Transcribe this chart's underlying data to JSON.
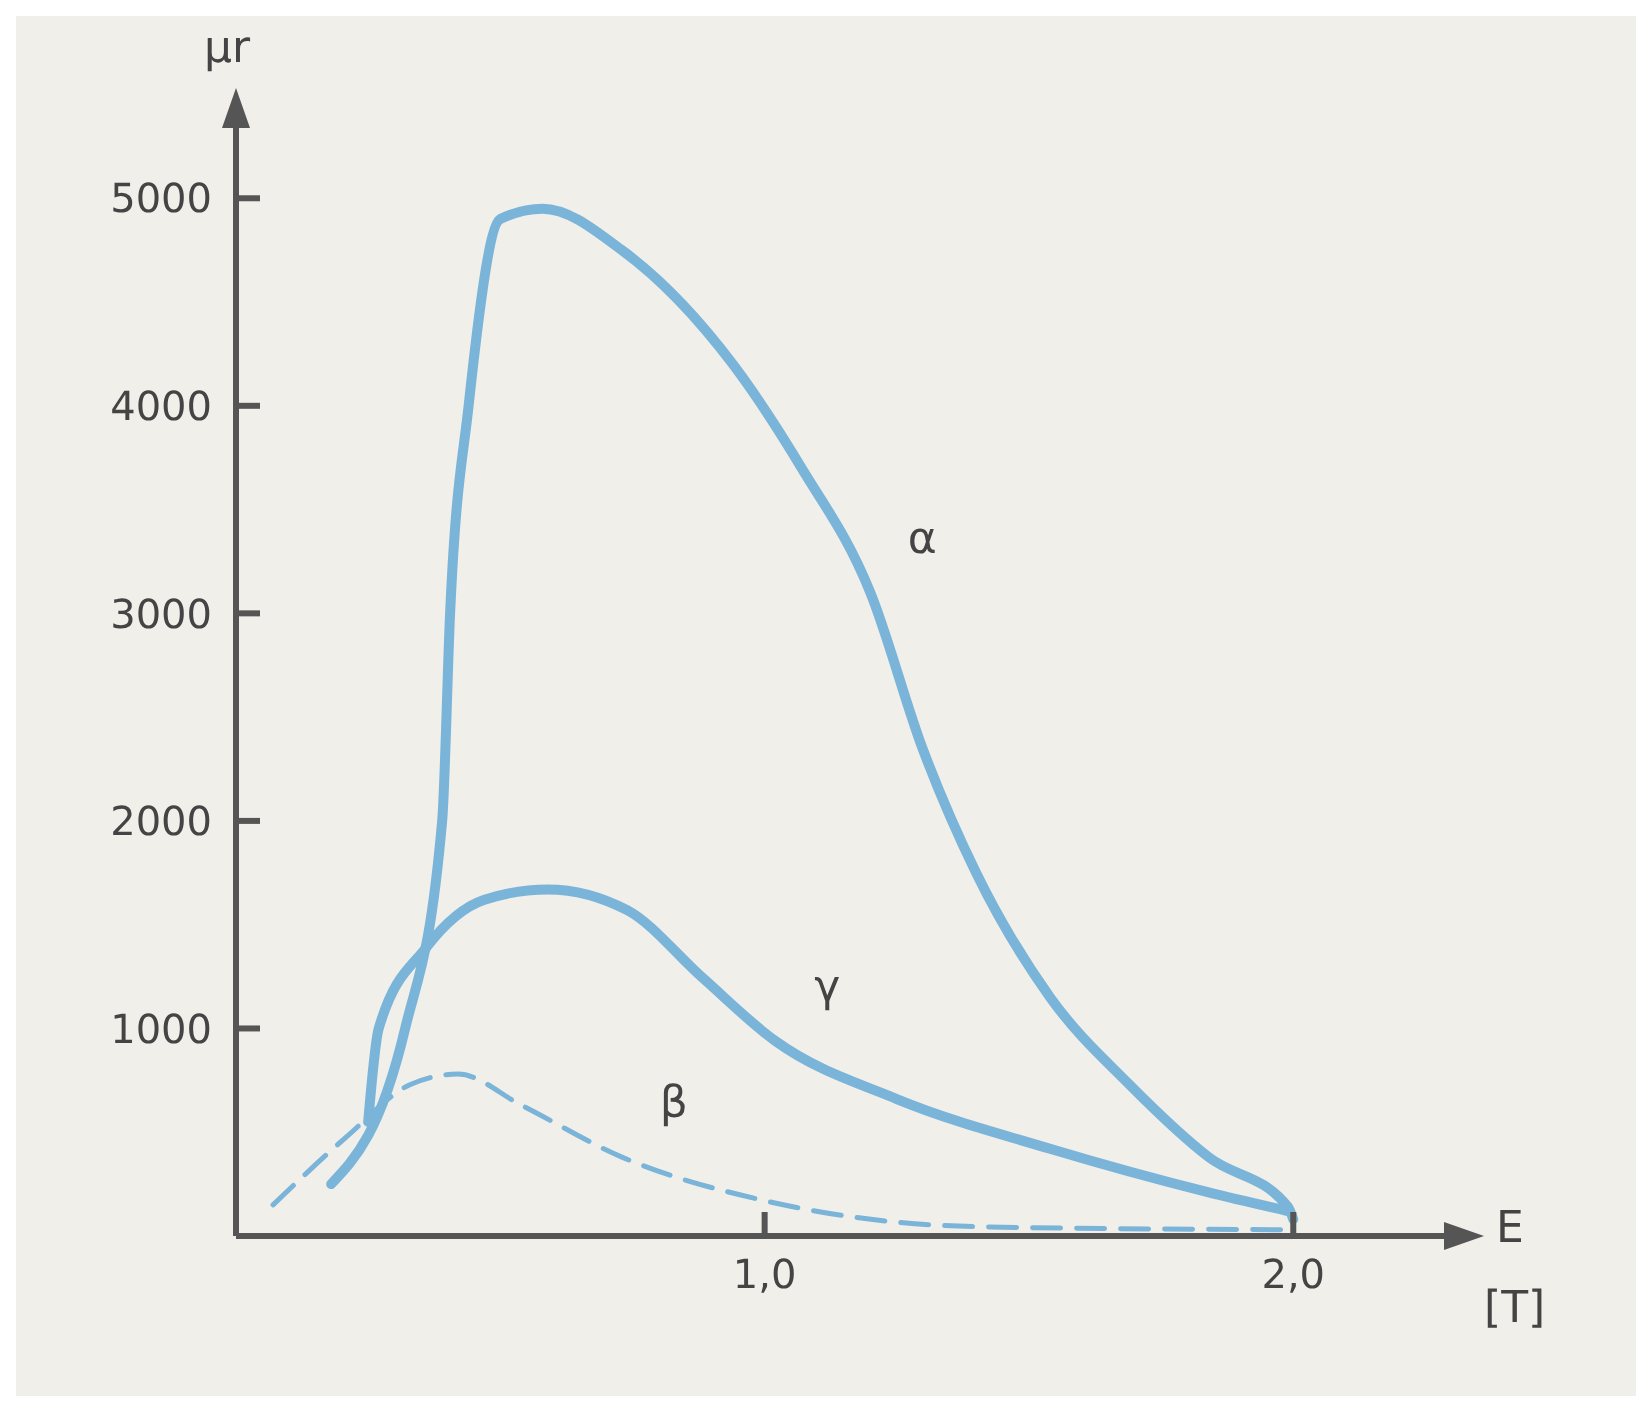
{
  "chart_data": {
    "type": "line",
    "xlabel": "E",
    "ylabel": "μr",
    "xlim": [
      0,
      2.27
    ],
    "ylim": [
      0,
      5300
    ],
    "xticks": [
      {
        "value": 1,
        "label": "1,0"
      },
      {
        "value": 2,
        "label": "2,0"
      }
    ],
    "yticks": [
      1000,
      2000,
      3000,
      4000,
      5000
    ],
    "grid": false,
    "legend": false,
    "marker": "none",
    "series": [
      {
        "name": "α",
        "color": "#7ab4d8",
        "line_style": "solid",
        "x": [
          0.18,
          0.32,
          0.39,
          0.405,
          0.44,
          0.5,
          0.58,
          0.73,
          0.94,
          1.07,
          1.2,
          1.3,
          1.4,
          1.54,
          1.69,
          1.84,
          1.99,
          2.0
        ],
        "values": [
          250,
          1000,
          2000,
          3000,
          4000,
          4900,
          4950,
          4750,
          4200,
          3700,
          3100,
          2340,
          1750,
          1150,
          730,
          380,
          140,
          80
        ]
      },
      {
        "name": "γ",
        "color": "#7ab4d8",
        "line_style": "solid",
        "x": [
          0.25,
          0.27,
          0.36,
          0.47,
          0.59,
          0.74,
          0.88,
          1.02,
          1.25,
          1.54,
          1.84,
          1.99
        ],
        "values": [
          550,
          1000,
          1390,
          1620,
          1670,
          1570,
          1250,
          940,
          660,
          420,
          210,
          120
        ]
      },
      {
        "name": "β",
        "color": "#7ab4d8",
        "line_style": "dashed",
        "x": [
          0.07,
          0.21,
          0.33,
          0.42,
          0.54,
          0.73,
          1.0,
          1.4,
          1.99
        ],
        "values": [
          150,
          480,
          730,
          780,
          630,
          380,
          170,
          45,
          30
        ]
      }
    ],
    "annotations": [
      "[T]"
    ]
  }
}
